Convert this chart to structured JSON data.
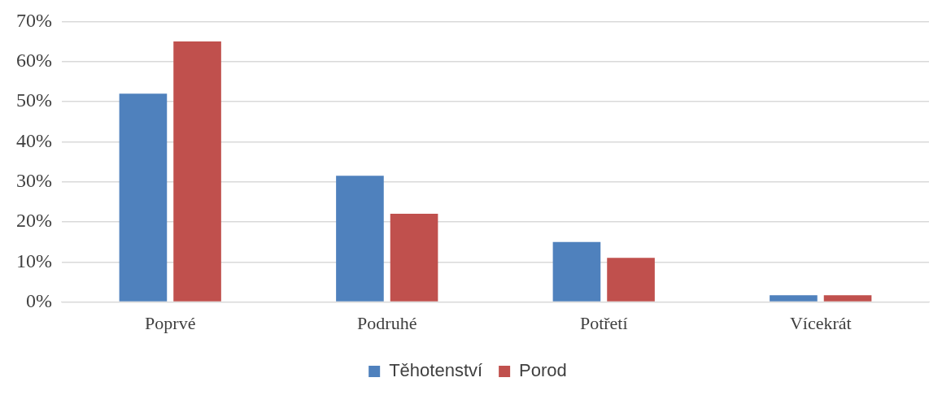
{
  "chart_data": {
    "type": "bar",
    "categories": [
      "Poprvé",
      "Podruhé",
      "Potřetí",
      "Vícekrát"
    ],
    "series": [
      {
        "name": "Těhotenství",
        "color": "#4f81bd",
        "values": [
          52,
          31.5,
          15,
          1.7
        ]
      },
      {
        "name": "Porod",
        "color": "#c0504d",
        "values": [
          65,
          22,
          11,
          1.7
        ]
      }
    ],
    "ylim": [
      0,
      70
    ],
    "yticks": [
      {
        "value": 0,
        "label": "0%"
      },
      {
        "value": 10,
        "label": "10%"
      },
      {
        "value": 20,
        "label": "20%"
      },
      {
        "value": 30,
        "label": "30%"
      },
      {
        "value": 40,
        "label": "40%"
      },
      {
        "value": 50,
        "label": "50%"
      },
      {
        "value": 60,
        "label": "60%"
      },
      {
        "value": 70,
        "label": "70%"
      }
    ],
    "grid": "y",
    "legend": "bottom"
  }
}
